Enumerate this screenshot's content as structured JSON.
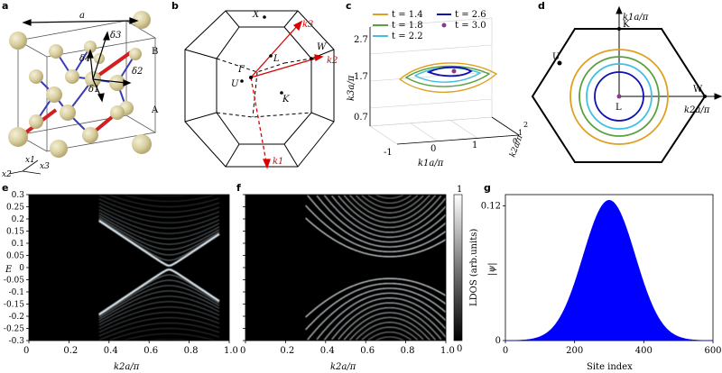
{
  "panels": {
    "a": {
      "letter": "a",
      "lattice_constant": "a",
      "vectors": [
        "δ3",
        "δ4",
        "δ1",
        "δ2"
      ],
      "sublattices": [
        "A",
        "B"
      ],
      "axes": [
        "x1",
        "x2",
        "x3"
      ]
    },
    "b": {
      "letter": "b",
      "points": [
        "X",
        "Γ",
        "L",
        "U",
        "W",
        "K"
      ],
      "k_axes": [
        "k1",
        "k2",
        "k3"
      ]
    },
    "c": {
      "letter": "c",
      "legend": [
        "t = 1.4",
        "t = 1.8",
        "t = 2.2",
        "t = 2.6",
        "t = 3.0"
      ],
      "legend_colors": [
        "#e0a020",
        "#5aa040",
        "#40c0e0",
        "#1010b0",
        "#8a3a8a"
      ],
      "zticks": [
        "2.7",
        "1.7",
        "0.7"
      ],
      "xticks": [
        "-1",
        "0",
        "1"
      ],
      "yticks": [
        "0",
        "1",
        "2"
      ],
      "xlabel": "k1a/π",
      "ylabel": "k2a/π",
      "zlabel": "k3a/π"
    },
    "d": {
      "letter": "d",
      "points": [
        "K",
        "U",
        "W",
        "L"
      ],
      "xlabel": "k2a/π",
      "ylabel": "k1a/π",
      "ring_colors": [
        "#e0a020",
        "#5aa040",
        "#40c0e0",
        "#1010b0"
      ]
    },
    "e": {
      "letter": "e",
      "ylabel": "E",
      "xlabel": "k2a/π",
      "yticks": [
        "0.3",
        "0.25",
        "0.2",
        "0.15",
        "0.1",
        "0.05",
        "0",
        "-0.05",
        "-0.1",
        "-0.15",
        "-0.2",
        "-0.25",
        "-0.3"
      ],
      "xticks": [
        "0",
        "0.2",
        "0.4",
        "0.6",
        "0.8",
        "1.0"
      ]
    },
    "f": {
      "letter": "f",
      "xlabel": "k2a/π",
      "xticks": [
        "0",
        "0.2",
        "0.4",
        "0.6",
        "0.8",
        "1.0"
      ],
      "colorbar_label": "LDOS (arb.units)",
      "colorbar_ticks": [
        "1",
        "0"
      ]
    },
    "g": {
      "letter": "g",
      "ylabel": "|ψ|",
      "xlabel": "Site index",
      "yticks": [
        "0.12",
        "0"
      ],
      "xticks": [
        "0",
        "200",
        "400",
        "600"
      ]
    }
  },
  "chart_data": [
    {
      "type": "heatmap",
      "panel": "e",
      "xlabel": "k2a/π",
      "ylabel": "E",
      "xlim": [
        0,
        1.0
      ],
      "ylim": [
        -0.3,
        0.3
      ],
      "crossing_k": 0.7
    },
    {
      "type": "heatmap",
      "panel": "f",
      "xlabel": "k2a/π",
      "xlim": [
        0,
        1.0
      ],
      "ylim": [
        -0.3,
        0.3
      ],
      "colorbar_range": [
        0,
        1
      ],
      "colorbar_label": "LDOS (arb.units)"
    },
    {
      "type": "area",
      "panel": "g",
      "xlabel": "Site index",
      "ylabel": "|ψ|",
      "xlim": [
        0,
        600
      ],
      "ylim": [
        0,
        0.13
      ],
      "peak_x": 300,
      "peak_y": 0.125,
      "color": "#0000ff"
    }
  ]
}
